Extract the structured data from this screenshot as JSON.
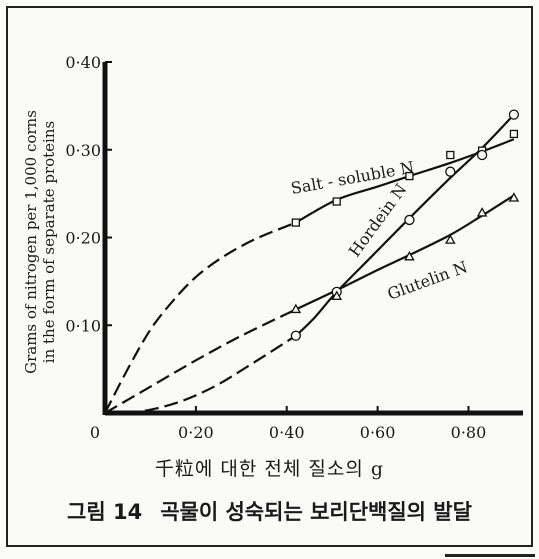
{
  "chart_data": {
    "type": "line",
    "xlabel": "千粒에 대한 전체 질소의 g",
    "ylabel_line1": "Grams of nitrogen per 1,000 corns",
    "ylabel_line2": "in the form of separate proteins",
    "xlim": [
      0,
      0.92
    ],
    "ylim": [
      0,
      0.4
    ],
    "x_ticks": [
      "0",
      "0·20",
      "0·40",
      "0·60",
      "0·80"
    ],
    "x_tick_values": [
      0,
      0.2,
      0.4,
      0.6,
      0.8
    ],
    "y_ticks": [
      "0·10",
      "0·20",
      "0·30",
      "0·40"
    ],
    "y_tick_values": [
      0.1,
      0.2,
      0.3,
      0.4
    ],
    "series": [
      {
        "name": "Salt-soluble N",
        "label": "Salt - soluble N",
        "marker": "square",
        "points": [
          [
            0.42,
            0.217
          ],
          [
            0.51,
            0.241
          ],
          [
            0.67,
            0.27
          ],
          [
            0.76,
            0.294
          ],
          [
            0.83,
            0.299
          ],
          [
            0.9,
            0.318
          ]
        ],
        "curve": [
          [
            0.42,
            0.217
          ],
          [
            0.51,
            0.243
          ],
          [
            0.6,
            0.258
          ],
          [
            0.67,
            0.27
          ],
          [
            0.76,
            0.285
          ],
          [
            0.83,
            0.298
          ],
          [
            0.9,
            0.312
          ]
        ],
        "extrapolated": [
          [
            0.0,
            0.0
          ],
          [
            0.05,
            0.05
          ],
          [
            0.1,
            0.095
          ],
          [
            0.15,
            0.128
          ],
          [
            0.2,
            0.155
          ],
          [
            0.26,
            0.178
          ],
          [
            0.33,
            0.198
          ],
          [
            0.42,
            0.217
          ]
        ]
      },
      {
        "name": "Hordein N",
        "label": "Hordein N",
        "marker": "circle",
        "points": [
          [
            0.42,
            0.088
          ],
          [
            0.51,
            0.138
          ],
          [
            0.67,
            0.22
          ],
          [
            0.76,
            0.275
          ],
          [
            0.83,
            0.294
          ],
          [
            0.9,
            0.34
          ]
        ],
        "curve": [
          [
            0.42,
            0.088
          ],
          [
            0.46,
            0.108
          ],
          [
            0.51,
            0.138
          ],
          [
            0.59,
            0.18
          ],
          [
            0.67,
            0.222
          ],
          [
            0.76,
            0.268
          ],
          [
            0.83,
            0.302
          ],
          [
            0.9,
            0.34
          ]
        ],
        "extrapolated": [
          [
            0.0,
            0.0
          ],
          [
            0.08,
            0.002
          ],
          [
            0.16,
            0.012
          ],
          [
            0.24,
            0.03
          ],
          [
            0.32,
            0.055
          ],
          [
            0.42,
            0.088
          ]
        ]
      },
      {
        "name": "Glutelin N",
        "label": "Glutelin N",
        "marker": "triangle",
        "points": [
          [
            0.42,
            0.118
          ],
          [
            0.51,
            0.133
          ],
          [
            0.67,
            0.178
          ],
          [
            0.76,
            0.197
          ],
          [
            0.83,
            0.228
          ],
          [
            0.9,
            0.245
          ]
        ],
        "curve": [
          [
            0.42,
            0.118
          ],
          [
            0.51,
            0.14
          ],
          [
            0.6,
            0.163
          ],
          [
            0.67,
            0.18
          ],
          [
            0.76,
            0.203
          ],
          [
            0.83,
            0.225
          ],
          [
            0.9,
            0.248
          ]
        ],
        "extrapolated": [
          [
            0.0,
            0.0
          ],
          [
            0.1,
            0.03
          ],
          [
            0.2,
            0.06
          ],
          [
            0.3,
            0.088
          ],
          [
            0.42,
            0.118
          ]
        ]
      }
    ]
  },
  "caption": {
    "figure_number": "그림 14",
    "text": "곡물이 성숙되는 보리단백질의 발달"
  }
}
